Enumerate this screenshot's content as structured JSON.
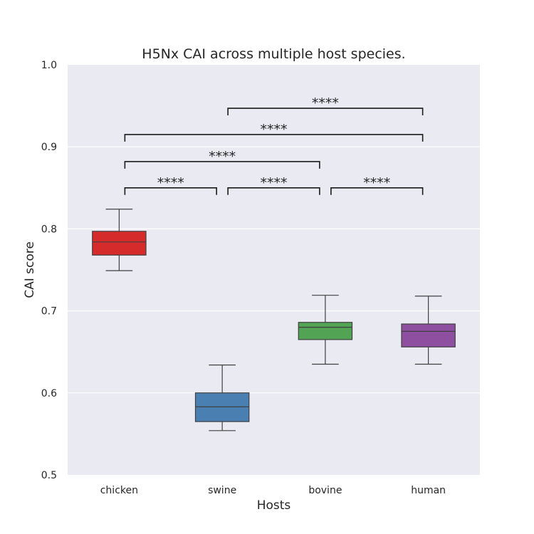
{
  "chart_data": {
    "type": "box",
    "title": "H5Nx CAI across multiple host species.",
    "xlabel": "Hosts",
    "ylabel": "CAI score",
    "ylim": [
      0.5,
      1.0
    ],
    "yticks": [
      "0.5",
      "0.6",
      "0.7",
      "0.8",
      "0.9",
      "1.0"
    ],
    "grid": true,
    "categories": [
      "chicken",
      "swine",
      "bovine",
      "human"
    ],
    "colors": {
      "chicken": "#d62b2b",
      "swine": "#4a7fb2",
      "bovine": "#52a353",
      "human": "#8e4fa0",
      "background": "#eaeaf2",
      "grid": "#ffffff",
      "line": "#404040"
    },
    "boxes": [
      {
        "category": "chicken",
        "whisker_low": 0.749,
        "q1": 0.768,
        "median": 0.784,
        "q3": 0.797,
        "whisker_high": 0.824
      },
      {
        "category": "swine",
        "whisker_low": 0.554,
        "q1": 0.565,
        "median": 0.583,
        "q3": 0.6,
        "whisker_high": 0.634
      },
      {
        "category": "bovine",
        "whisker_low": 0.635,
        "q1": 0.665,
        "median": 0.68,
        "q3": 0.686,
        "whisker_high": 0.719
      },
      {
        "category": "human",
        "whisker_low": 0.635,
        "q1": 0.656,
        "median": 0.675,
        "q3": 0.684,
        "whisker_high": 0.718
      }
    ],
    "significance": [
      {
        "from": "chicken",
        "to": "swine",
        "y": 0.85,
        "label": "****"
      },
      {
        "from": "swine",
        "to": "bovine",
        "y": 0.85,
        "label": "****"
      },
      {
        "from": "bovine",
        "to": "human",
        "y": 0.85,
        "label": "****"
      },
      {
        "from": "chicken",
        "to": "bovine",
        "y": 0.882,
        "label": "****"
      },
      {
        "from": "chicken",
        "to": "human",
        "y": 0.915,
        "label": "****"
      },
      {
        "from": "swine",
        "to": "human",
        "y": 0.947,
        "label": "****"
      }
    ]
  }
}
